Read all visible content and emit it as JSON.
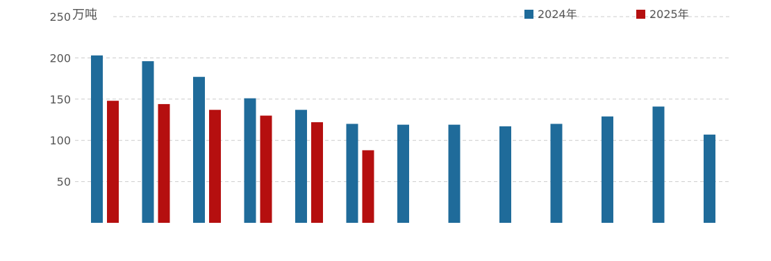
{
  "chart_data": {
    "type": "bar",
    "unit_label": "万吨",
    "ylim": [
      0,
      250
    ],
    "yticks": [
      "250",
      "200",
      "150",
      "100",
      "50"
    ],
    "grid": true,
    "legend_position": "top-right",
    "categories": [
      "",
      "",
      "",
      "",
      "",
      "",
      "",
      "",
      "",
      "",
      "",
      "",
      ""
    ],
    "series": [
      {
        "name": "2024年",
        "color": "#1f6b9a",
        "values": [
          203,
          196,
          177,
          151,
          137,
          120,
          119,
          119,
          117,
          120,
          129,
          141,
          107
        ]
      },
      {
        "name": "2025年",
        "color": "#b50f0f",
        "values": [
          148,
          144,
          137,
          130,
          122,
          88,
          null,
          null,
          null,
          null,
          null,
          null,
          null
        ]
      }
    ]
  }
}
